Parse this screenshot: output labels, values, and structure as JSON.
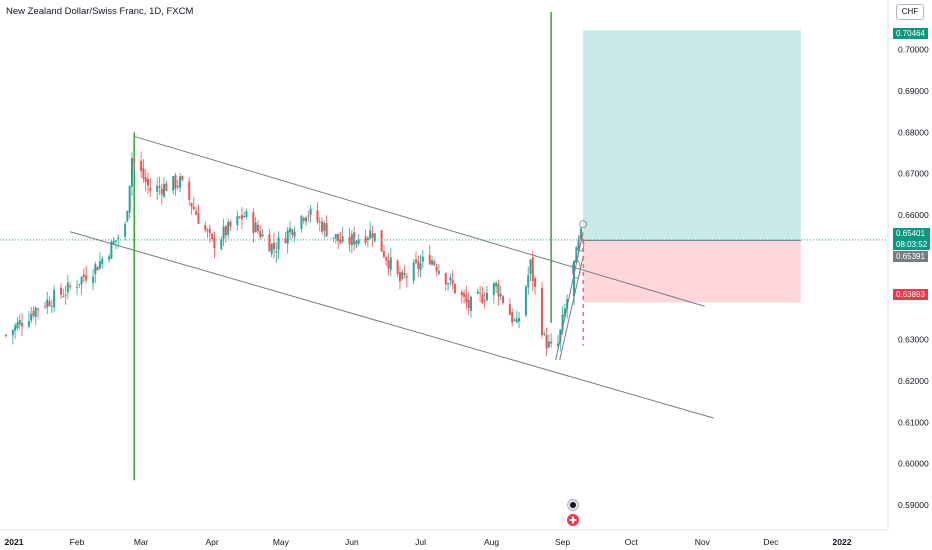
{
  "title": "New Zealand Dollar/Swiss Franc, 1D, FXCM",
  "currency": "CHF",
  "colors": {
    "up": "#26a69a",
    "down": "#ef5350",
    "vline": "#33a532",
    "channel": "#787b86",
    "target_zone": "#b2dfdb",
    "stop_zone": "#ffcdd2",
    "current_line": "#089981"
  },
  "price_tags": {
    "target": "0.70464",
    "current": "0.65401",
    "countdown": "08:03:52",
    "entry": "0.65391",
    "stop": "0.63893"
  },
  "chart_data": {
    "type": "candlestick",
    "title": "New Zealand Dollar/Swiss Franc, 1D, FXCM",
    "ylim": [
      0.584,
      0.71
    ],
    "y_ticks": [
      0.59,
      0.6,
      0.61,
      0.62,
      0.63,
      0.64,
      0.65,
      0.66,
      0.67,
      0.68,
      0.69,
      0.7
    ],
    "y_tick_labels": [
      "0.59000",
      "0.60000",
      "0.61000",
      "0.62000",
      "0.63000",
      "",
      "",
      "0.66000",
      "0.67000",
      "0.68000",
      "0.69000",
      "0.70000"
    ],
    "x_ticks": [
      "2021",
      "Feb",
      "Mar",
      "Apr",
      "May",
      "Jun",
      "Jul",
      "Aug",
      "Sep",
      "Oct",
      "Nov",
      "Dec",
      "2022"
    ],
    "x_range": [
      "2021-01-01",
      "2022-01-01"
    ],
    "anchors": [
      {
        "date": "2021-01-01",
        "close": 0.631
      },
      {
        "date": "2021-01-15",
        "close": 0.638
      },
      {
        "date": "2021-01-28",
        "close": 0.642
      },
      {
        "date": "2021-02-10",
        "close": 0.648
      },
      {
        "date": "2021-02-22",
        "close": 0.657
      },
      {
        "date": "2021-02-25",
        "close": 0.674
      },
      {
        "date": "2021-03-05",
        "close": 0.666
      },
      {
        "date": "2021-03-18",
        "close": 0.668
      },
      {
        "date": "2021-04-01",
        "close": 0.653
      },
      {
        "date": "2021-04-15",
        "close": 0.66
      },
      {
        "date": "2021-04-28",
        "close": 0.652
      },
      {
        "date": "2021-05-12",
        "close": 0.661
      },
      {
        "date": "2021-05-28",
        "close": 0.653
      },
      {
        "date": "2021-06-10",
        "close": 0.656
      },
      {
        "date": "2021-06-22",
        "close": 0.644
      },
      {
        "date": "2021-07-05",
        "close": 0.65
      },
      {
        "date": "2021-07-12",
        "close": 0.645
      },
      {
        "date": "2021-07-22",
        "close": 0.638
      },
      {
        "date": "2021-08-03",
        "close": 0.643
      },
      {
        "date": "2021-08-12",
        "close": 0.633
      },
      {
        "date": "2021-08-18",
        "close": 0.648
      },
      {
        "date": "2021-08-24",
        "close": 0.63
      },
      {
        "date": "2021-08-29",
        "close": 0.626
      },
      {
        "date": "2021-09-06",
        "close": 0.648
      },
      {
        "date": "2021-09-09",
        "close": 0.655
      }
    ],
    "vertical_lines": [
      "2021-02-26",
      "2021-08-27"
    ],
    "channel_lines": [
      {
        "from": {
          "date": "2021-02-26",
          "price": 0.679
        },
        "to": {
          "date": "2021-11-02",
          "price": 0.638
        }
      },
      {
        "from": {
          "date": "2021-01-29",
          "price": 0.656
        },
        "to": {
          "date": "2021-11-06",
          "price": 0.611
        }
      }
    ],
    "position": {
      "type": "long",
      "start": "2021-09-10",
      "end": "2021-12-14",
      "entry": 0.65391,
      "target": 0.70464,
      "stop": 0.63893
    },
    "current_price": 0.65401
  }
}
